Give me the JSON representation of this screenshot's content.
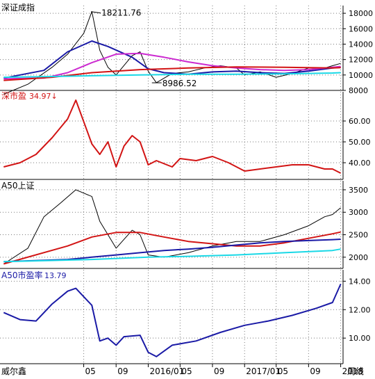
{
  "chart_data": [
    {
      "type": "line",
      "title": "深证成指",
      "annotations": [
        {
          "text": "18211.76",
          "x": "2015-06-12",
          "y": 18211.76
        },
        {
          "text": "8986.52",
          "x": "2016-01-29",
          "y": 8986.52
        }
      ],
      "ylim": [
        8000,
        19000
      ],
      "y_ticks": [
        "18000",
        "16000",
        "14000",
        "12000",
        "10000",
        "8000"
      ],
      "y_tick_values": [
        18000,
        16000,
        14000,
        12000,
        10000,
        8000
      ],
      "series": [
        {
          "name": "",
          "color": "#000000",
          "x": [
            "2014-07",
            "2014-10",
            "2015-01",
            "2015-03",
            "2015-05",
            "2015-06",
            "2015-07",
            "2015-08",
            "2015-09",
            "2015-11",
            "2015-12",
            "2016-01",
            "2016-02",
            "2016-04",
            "2016-06",
            "2016-08",
            "2016-10",
            "2016-12",
            "2017-01",
            "2017-03",
            "2017-05",
            "2017-07",
            "2017-09",
            "2017-11",
            "2017-12",
            "2018-01"
          ],
          "values": [
            7500,
            8800,
            11000,
            12700,
            15400,
            18212,
            13200,
            11000,
            10000,
            12500,
            13000,
            10500,
            9000,
            10200,
            10400,
            10900,
            11200,
            10900,
            10000,
            10400,
            9700,
            10200,
            10900,
            10900,
            11200,
            11500
          ]
        },
        {
          "name": "",
          "color": "#1a1aa6",
          "x": [
            "2014-07",
            "2014-12",
            "2015-03",
            "2015-06",
            "2015-08",
            "2015-11",
            "2016-01",
            "2016-03",
            "2016-06",
            "2016-09",
            "2016-12",
            "2017-03",
            "2017-06",
            "2017-09",
            "2017-12",
            "2018-01"
          ],
          "values": [
            9600,
            10600,
            13000,
            14400,
            13700,
            12300,
            10800,
            10300,
            10100,
            10400,
            10500,
            10300,
            10200,
            10500,
            10900,
            11000
          ]
        },
        {
          "name": "",
          "color": "#cc2ad0",
          "x": [
            "2014-07",
            "2014-12",
            "2015-03",
            "2015-06",
            "2015-09",
            "2015-12",
            "2016-03",
            "2016-06",
            "2016-09",
            "2016-12",
            "2017-03",
            "2017-06",
            "2017-09",
            "2017-12",
            "2018-01"
          ],
          "values": [
            9500,
            9600,
            10300,
            11600,
            12700,
            12800,
            12300,
            11700,
            11200,
            10900,
            10700,
            10600,
            10700,
            11000,
            11100
          ]
        },
        {
          "name": "",
          "color": "#d21414",
          "x": [
            "2014-07",
            "2015-01",
            "2015-06",
            "2015-12",
            "2016-06",
            "2016-12",
            "2017-06",
            "2017-12",
            "2018-01"
          ],
          "values": [
            9300,
            9700,
            10300,
            10700,
            10900,
            11050,
            11000,
            10900,
            10950
          ]
        },
        {
          "name": "",
          "color": "#19d8e6",
          "x": [
            "2014-07",
            "2015-01",
            "2015-06",
            "2015-12",
            "2016-06",
            "2016-12",
            "2017-06",
            "2017-12",
            "2018-01"
          ],
          "values": [
            9700,
            9800,
            9900,
            10000,
            10100,
            10100,
            10150,
            10250,
            10300
          ]
        }
      ]
    },
    {
      "type": "line",
      "title": "深市盈",
      "title_value": "34.97↓",
      "ylim": [
        32,
        74
      ],
      "y_ticks": [
        "60.00",
        "50.00",
        "40.00"
      ],
      "y_tick_values": [
        60,
        50,
        40
      ],
      "series": [
        {
          "name": "",
          "color": "#d21414",
          "x": [
            "2014-07",
            "2014-09",
            "2014-11",
            "2015-01",
            "2015-03",
            "2015-04",
            "2015-06",
            "2015-07",
            "2015-08",
            "2015-09",
            "2015-10",
            "2015-11",
            "2015-12",
            "2016-01",
            "2016-02",
            "2016-04",
            "2016-05",
            "2016-07",
            "2016-09",
            "2016-11",
            "2017-01",
            "2017-03",
            "2017-05",
            "2017-07",
            "2017-09",
            "2017-11",
            "2017-12",
            "2018-01"
          ],
          "values": [
            38,
            40,
            44,
            52,
            61,
            70,
            49,
            44,
            50,
            38,
            48,
            53,
            50,
            39,
            41,
            38,
            42,
            41,
            43,
            40,
            36,
            37,
            38,
            39,
            39,
            37,
            37,
            35
          ]
        }
      ]
    },
    {
      "type": "line",
      "title": "A50上证",
      "ylim": [
        1750,
        3700
      ],
      "y_ticks": [
        "3500",
        "3000",
        "2500",
        "2000"
      ],
      "y_tick_values": [
        3500,
        3000,
        2500,
        2000
      ],
      "series": [
        {
          "name": "",
          "color": "#000000",
          "x": [
            "2014-07",
            "2014-10",
            "2014-12",
            "2015-02",
            "2015-04",
            "2015-06",
            "2015-07",
            "2015-09",
            "2015-11",
            "2015-12",
            "2016-01",
            "2016-03",
            "2016-06",
            "2016-09",
            "2016-12",
            "2017-03",
            "2017-06",
            "2017-09",
            "2017-11",
            "2017-12",
            "2018-01"
          ],
          "values": [
            1850,
            2200,
            2900,
            3200,
            3500,
            3350,
            2800,
            2200,
            2600,
            2500,
            2050,
            2000,
            2100,
            2250,
            2350,
            2350,
            2500,
            2700,
            2900,
            2950,
            3100
          ]
        },
        {
          "name": "",
          "color": "#d21414",
          "x": [
            "2014-07",
            "2015-03",
            "2015-06",
            "2015-09",
            "2015-12",
            "2016-03",
            "2016-06",
            "2016-09",
            "2016-12",
            "2017-03",
            "2017-06",
            "2017-09",
            "2017-12",
            "2018-01"
          ],
          "values": [
            1850,
            2250,
            2450,
            2550,
            2550,
            2450,
            2350,
            2300,
            2250,
            2250,
            2320,
            2420,
            2520,
            2560
          ]
        },
        {
          "name": "",
          "color": "#1a1aa6",
          "x": [
            "2014-07",
            "2015-03",
            "2015-06",
            "2015-09",
            "2015-12",
            "2016-03",
            "2016-06",
            "2016-09",
            "2016-12",
            "2017-03",
            "2017-06",
            "2017-09",
            "2017-12",
            "2018-01"
          ],
          "values": [
            1900,
            1950,
            2000,
            2050,
            2100,
            2150,
            2180,
            2220,
            2270,
            2320,
            2350,
            2370,
            2390,
            2400
          ]
        },
        {
          "name": "",
          "color": "#19d8e6",
          "x": [
            "2014-07",
            "2015-06",
            "2016-01",
            "2016-06",
            "2016-12",
            "2017-06",
            "2017-12",
            "2018-01"
          ],
          "values": [
            1900,
            1950,
            2000,
            2020,
            2050,
            2100,
            2150,
            2180
          ]
        }
      ]
    },
    {
      "type": "line",
      "title": "A50市盈率",
      "title_value": "13.79",
      "ylim": [
        8.2,
        14.8
      ],
      "y_ticks": [
        "14.00",
        "12.00",
        "10.00"
      ],
      "y_tick_values": [
        14,
        12,
        10
      ],
      "series": [
        {
          "name": "",
          "color": "#1a1aa6",
          "x": [
            "2014-07",
            "2014-09",
            "2014-11",
            "2015-01",
            "2015-03",
            "2015-04",
            "2015-06",
            "2015-07",
            "2015-08",
            "2015-09",
            "2015-10",
            "2015-12",
            "2016-01",
            "2016-02",
            "2016-04",
            "2016-07",
            "2016-10",
            "2017-01",
            "2017-04",
            "2017-07",
            "2017-10",
            "2017-12",
            "2018-01"
          ],
          "values": [
            11.8,
            11.3,
            11.2,
            12.4,
            13.3,
            13.5,
            12.3,
            9.8,
            10.0,
            9.5,
            10.1,
            10.2,
            9.0,
            8.7,
            9.5,
            9.8,
            10.4,
            10.9,
            11.2,
            11.6,
            12.1,
            12.5,
            13.8
          ]
        }
      ]
    }
  ],
  "x_axis": {
    "ticks": [
      "05",
      "09",
      "2016/01",
      "05",
      "09",
      "2017/01",
      "05",
      "09",
      "2018"
    ],
    "tick_dates": [
      "2015-05",
      "2015-09",
      "2016-01",
      "2016-05",
      "2016-09",
      "2017-01",
      "2017-05",
      "2017-09",
      "2018-01"
    ],
    "left_label": "威尔鑫",
    "right_label": "周线"
  },
  "palette": {
    "background": "#ffffff",
    "frame": "#000000",
    "grid": "#7a7a7a"
  },
  "x_range": [
    "2014-07-01",
    "2018-01-24"
  ]
}
